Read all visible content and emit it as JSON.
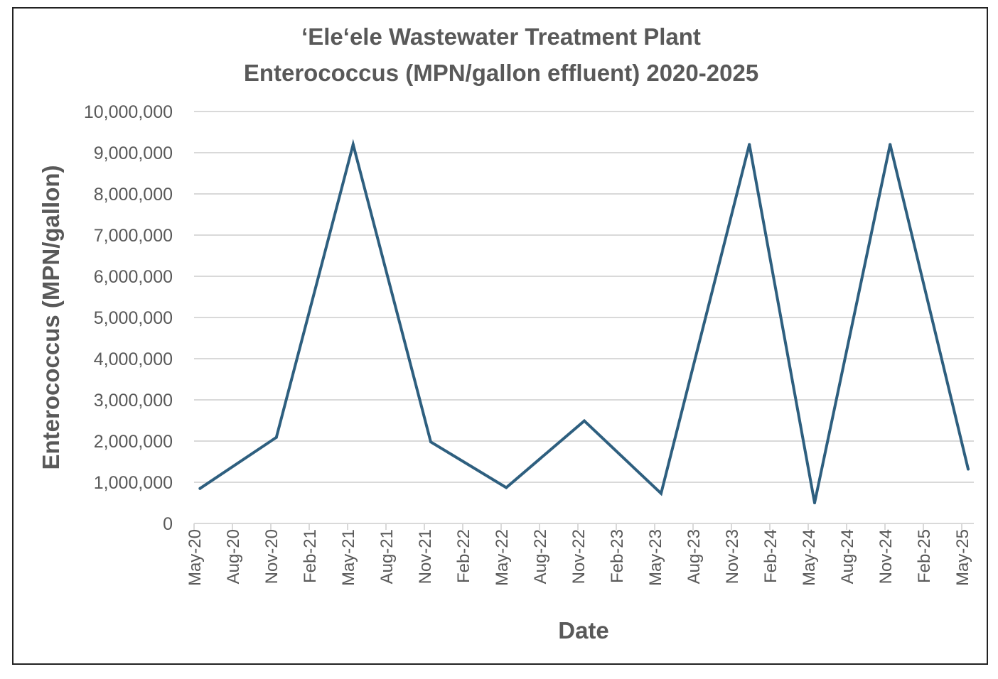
{
  "chart_data": {
    "type": "line",
    "title_lines": [
      "‘Ele‘ele Wastewater Treatment Plant",
      "Enterococcus (MPN/gallon effluent) 2020-2025"
    ],
    "xlabel": "Date",
    "ylabel": "Enterococcus (MPN/gallon)",
    "ylim": [
      0,
      10000000
    ],
    "ytick_step": 1000000,
    "ytick_labels": [
      "0",
      "1,000,000",
      "2,000,000",
      "3,000,000",
      "4,000,000",
      "5,000,000",
      "6,000,000",
      "7,000,000",
      "8,000,000",
      "9,000,000",
      "10,000,000"
    ],
    "xtick_labels": [
      "May-20",
      "Aug-20",
      "Nov-20",
      "Feb-21",
      "May-21",
      "Aug-21",
      "Nov-21",
      "Feb-22",
      "May-22",
      "Aug-22",
      "Nov-22",
      "Feb-23",
      "May-23",
      "Aug-23",
      "Nov-23",
      "Feb-24",
      "May-24",
      "Aug-24",
      "Nov-24",
      "Feb-25",
      "May-25"
    ],
    "xlim": [
      "2020-05-01",
      "2025-06-01"
    ],
    "grid": true,
    "legend": "none",
    "series": [
      {
        "name": "Enterococcus",
        "color": "#2E5F7F",
        "x": [
          "2020-05-15",
          "2020-11-14",
          "2021-05-14",
          "2021-11-16",
          "2022-05-13",
          "2022-11-16",
          "2023-05-16",
          "2023-12-13",
          "2024-05-16",
          "2024-11-13",
          "2025-05-16"
        ],
        "values": [
          850000,
          2090000,
          9200000,
          1980000,
          870000,
          2490000,
          730000,
          9200000,
          500000,
          9200000,
          1320000
        ]
      }
    ]
  }
}
